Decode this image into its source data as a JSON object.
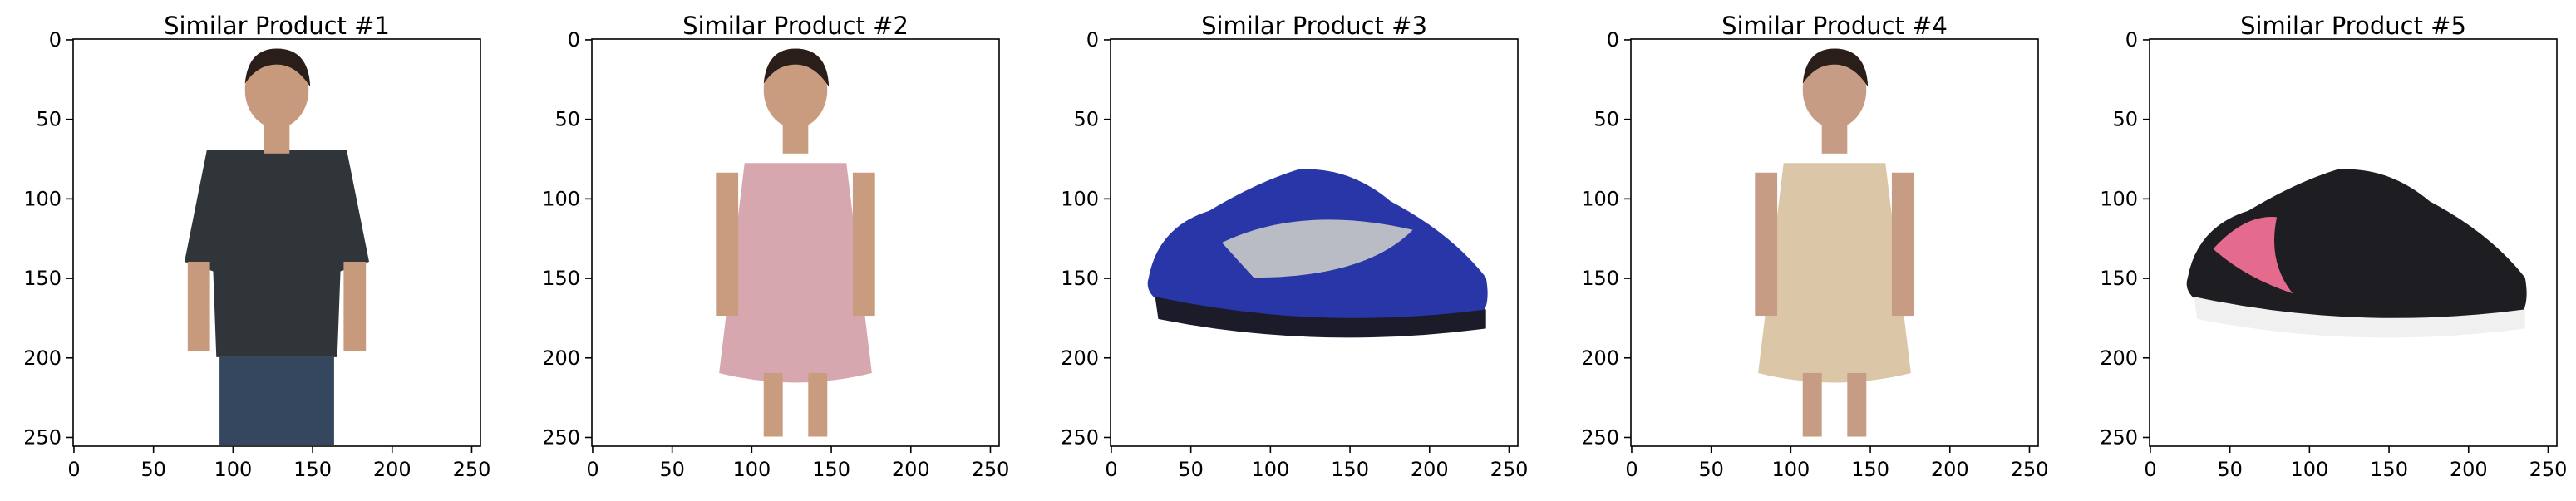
{
  "chart_data": [
    {
      "type": "image",
      "title": "Similar Product #1",
      "subject": "man in dark short-sleeve button-up shirt and jeans",
      "xlim": [
        0,
        255
      ],
      "ylim": [
        255,
        0
      ],
      "xticks": [
        0,
        50,
        100,
        150,
        200,
        250
      ],
      "yticks": [
        0,
        50,
        100,
        150,
        200,
        250
      ],
      "colors": {
        "main": "#2f3538",
        "skin": "#c79a7e",
        "accent": "#34475e"
      }
    },
    {
      "type": "image",
      "title": "Similar Product #2",
      "subject": "woman in pink patterned kurta",
      "xlim": [
        0,
        255
      ],
      "ylim": [
        255,
        0
      ],
      "xticks": [
        0,
        50,
        100,
        150,
        200,
        250
      ],
      "yticks": [
        0,
        50,
        100,
        150,
        200,
        250
      ],
      "colors": {
        "main": "#d7a7b0",
        "skin": "#c99c80",
        "accent": "#2c8a7a"
      }
    },
    {
      "type": "image",
      "title": "Similar Product #3",
      "subject": "blue and grey running shoe",
      "xlim": [
        0,
        255
      ],
      "ylim": [
        255,
        0
      ],
      "xticks": [
        0,
        50,
        100,
        150,
        200,
        250
      ],
      "yticks": [
        0,
        50,
        100,
        150,
        200,
        250
      ],
      "colors": {
        "main": "#2836a8",
        "skin": "#b9bcc4",
        "accent": "#1b1b2a"
      }
    },
    {
      "type": "image",
      "title": "Similar Product #4",
      "subject": "woman in beige satin slip dress",
      "xlim": [
        0,
        255
      ],
      "ylim": [
        255,
        0
      ],
      "xticks": [
        0,
        50,
        100,
        150,
        200,
        250
      ],
      "yticks": [
        0,
        50,
        100,
        150,
        200,
        250
      ],
      "colors": {
        "main": "#dcc6a8",
        "skin": "#c69c85",
        "accent": "#3a2a24"
      }
    },
    {
      "type": "image",
      "title": "Similar Product #5",
      "subject": "black sneaker with pink accents",
      "xlim": [
        0,
        255
      ],
      "ylim": [
        255,
        0
      ],
      "xticks": [
        0,
        50,
        100,
        150,
        200,
        250
      ],
      "yticks": [
        0,
        50,
        100,
        150,
        200,
        250
      ],
      "colors": {
        "main": "#1e1e22",
        "skin": "#e46a8e",
        "accent": "#f0f0f0"
      }
    }
  ]
}
